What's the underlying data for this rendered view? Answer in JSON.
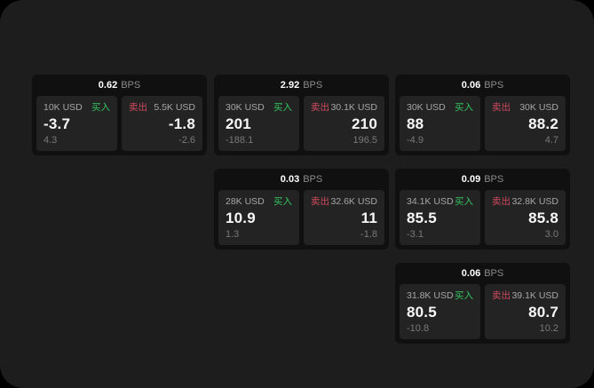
{
  "colors": {
    "outside_bg": "#000000",
    "surface_bg": "#1d1d1d",
    "card_bg": "#101010",
    "panel_bg": "#232323",
    "buy_green": "#33c45e",
    "sell_red": "#d04a5e",
    "value_white": "#f7f7f7",
    "muted_gray": "#8b8b8b"
  },
  "labels": {
    "bps_unit": "BPS",
    "buy": "买入",
    "sell": "卖出"
  },
  "cards": [
    {
      "bps": "0.62",
      "buy": {
        "size": "10K USD",
        "value": "-3.7",
        "sub": "4.3"
      },
      "sell": {
        "size": "5.5K USD",
        "value": "-1.8",
        "sub": "-2.6"
      }
    },
    {
      "bps": "2.92",
      "buy": {
        "size": "30K USD",
        "value": "201",
        "sub": "-188.1"
      },
      "sell": {
        "size": "30.1K USD",
        "value": "210",
        "sub": "196.5"
      }
    },
    {
      "bps": "0.06",
      "buy": {
        "size": "30K USD",
        "value": "88",
        "sub": "-4.9"
      },
      "sell": {
        "size": "30K USD",
        "value": "88.2",
        "sub": "4.7"
      }
    },
    {
      "bps": "0.03",
      "buy": {
        "size": "28K USD",
        "value": "10.9",
        "sub": "1.3"
      },
      "sell": {
        "size": "32.6K USD",
        "value": "11",
        "sub": "-1.8"
      }
    },
    {
      "bps": "0.09",
      "buy": {
        "size": "34.1K USD",
        "value": "85.5",
        "sub": "-3.1"
      },
      "sell": {
        "size": "32.8K USD",
        "value": "85.8",
        "sub": "3.0"
      }
    },
    {
      "bps": "0.06",
      "buy": {
        "size": "31.8K USD",
        "value": "80.5",
        "sub": "-10.8"
      },
      "sell": {
        "size": "39.1K USD",
        "value": "80.7",
        "sub": "10.2"
      }
    }
  ]
}
